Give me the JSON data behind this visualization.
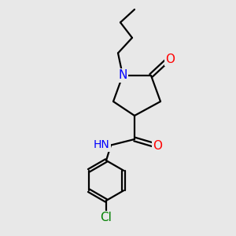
{
  "background_color": "#e8e8e8",
  "bond_color": "#000000",
  "N_color": "#0000ff",
  "O_color": "#ff0000",
  "Cl_color": "#008000",
  "line_width": 1.6,
  "figsize": [
    3.0,
    3.0
  ],
  "dpi": 100,
  "xlim": [
    0,
    10
  ],
  "ylim": [
    0,
    10
  ]
}
